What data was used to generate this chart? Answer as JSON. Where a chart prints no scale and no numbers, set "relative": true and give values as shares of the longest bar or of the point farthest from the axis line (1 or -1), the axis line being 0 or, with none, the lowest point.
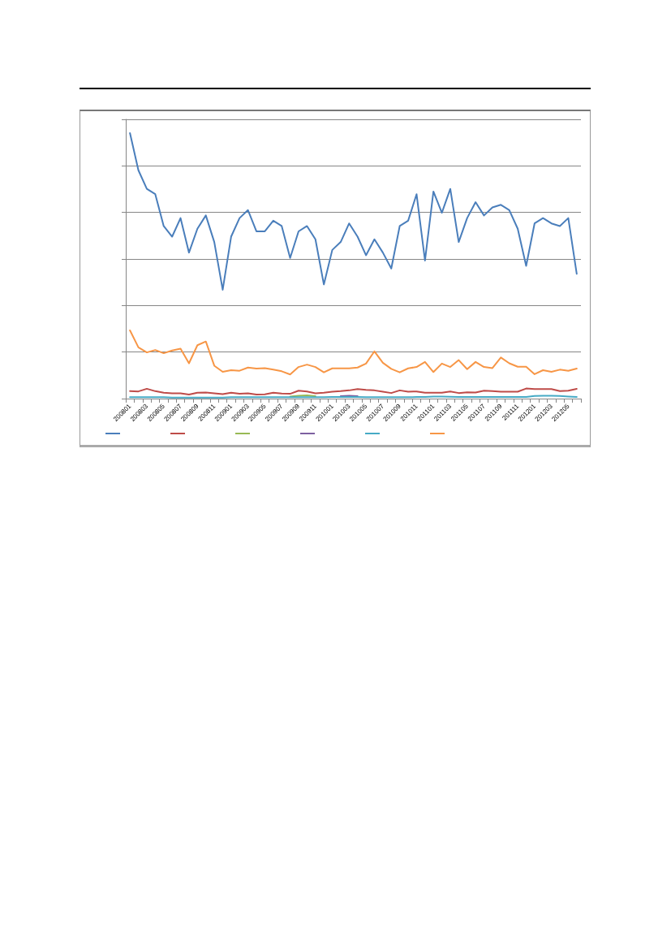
{
  "chart_data": {
    "type": "line",
    "relative": true,
    "grid": "y",
    "marker": "none",
    "line_style": "solid",
    "categories": [
      "200801",
      null,
      "200803",
      null,
      "200805",
      null,
      "200807",
      null,
      "200809",
      null,
      "200811",
      null,
      "200901",
      null,
      "200903",
      null,
      "200905",
      null,
      "200907",
      null,
      "200909",
      null,
      "200911",
      null,
      "201001",
      null,
      "201003",
      null,
      "201005",
      null,
      "201007",
      null,
      "201009",
      null,
      "201011",
      null,
      "201101",
      null,
      "201103",
      null,
      "201105",
      null,
      "201107",
      null,
      "201109",
      null,
      "201111",
      null,
      "201201",
      null,
      "201203",
      null,
      "201205",
      null
    ],
    "series": [
      {
        "color": "#4a7ebb",
        "values": [
          1.0,
          0.86,
          0.79,
          0.77,
          0.65,
          0.61,
          0.68,
          0.55,
          0.64,
          0.69,
          0.59,
          0.41,
          0.61,
          0.68,
          0.71,
          0.63,
          0.63,
          0.67,
          0.65,
          0.53,
          0.63,
          0.65,
          0.6,
          0.43,
          0.56,
          0.59,
          0.66,
          0.61,
          0.54,
          0.6,
          0.55,
          0.49,
          0.65,
          0.67,
          0.77,
          0.52,
          0.78,
          0.7,
          0.79,
          0.59,
          0.68,
          0.74,
          0.69,
          0.72,
          0.73,
          0.71,
          0.64,
          0.5,
          0.66,
          0.68,
          0.66,
          0.65,
          0.68,
          0.47
        ]
      },
      {
        "color": "#be4b48",
        "values": [
          0.028,
          0.027,
          0.037,
          0.028,
          0.022,
          0.02,
          0.02,
          0.015,
          0.022,
          0.023,
          0.02,
          0.017,
          0.022,
          0.018,
          0.02,
          0.015,
          0.016,
          0.022,
          0.019,
          0.018,
          0.03,
          0.027,
          0.02,
          0.022,
          0.026,
          0.028,
          0.031,
          0.036,
          0.033,
          0.031,
          0.026,
          0.021,
          0.031,
          0.026,
          0.027,
          0.022,
          0.022,
          0.022,
          0.027,
          0.021,
          0.024,
          0.023,
          0.03,
          0.028,
          0.026,
          0.026,
          0.026,
          0.038,
          0.036,
          0.036,
          0.036,
          0.028,
          0.03,
          0.037
        ]
      },
      {
        "color": "#98b954",
        "values": [
          null,
          null,
          null,
          null,
          null,
          null,
          null,
          null,
          null,
          null,
          null,
          null,
          null,
          null,
          null,
          null,
          null,
          null,
          null,
          0.008,
          0.011,
          0.012,
          0.009,
          null,
          null,
          null,
          null,
          null,
          null,
          null,
          null,
          null,
          null,
          null,
          null,
          null,
          null,
          null,
          null,
          null,
          null,
          null,
          null,
          null,
          null,
          null,
          null,
          null,
          null,
          null,
          null,
          null,
          null,
          null
        ]
      },
      {
        "color": "#7d60a0",
        "values": [
          null,
          null,
          null,
          null,
          null,
          null,
          null,
          null,
          null,
          null,
          null,
          null,
          null,
          null,
          null,
          null,
          null,
          null,
          null,
          null,
          null,
          null,
          null,
          null,
          null,
          0.009,
          0.011,
          0.009,
          null,
          null,
          null,
          null,
          null,
          null,
          null,
          null,
          null,
          null,
          null,
          null,
          null,
          null,
          null,
          null,
          null,
          null,
          null,
          null,
          null,
          null,
          null,
          null,
          null,
          null
        ]
      },
      {
        "color": "#46aac5",
        "values": [
          0.005,
          0.005,
          0.005,
          0.005,
          0.005,
          0.004,
          0.004,
          0.004,
          0.004,
          0.004,
          0.004,
          0.004,
          0.005,
          0.005,
          0.005,
          0.005,
          0.005,
          0.005,
          0.005,
          0.005,
          0.005,
          0.005,
          0.005,
          0.005,
          0.006,
          0.006,
          0.006,
          0.006,
          0.005,
          0.005,
          0.005,
          0.005,
          0.005,
          0.005,
          0.006,
          0.006,
          0.008,
          0.008,
          0.007,
          0.006,
          0.006,
          0.006,
          0.006,
          0.006,
          0.006,
          0.006,
          0.006,
          0.006,
          0.01,
          0.011,
          0.011,
          0.01,
          0.008,
          0.006
        ]
      },
      {
        "color": "#f79646",
        "values": [
          0.257,
          0.193,
          0.174,
          0.183,
          0.171,
          0.181,
          0.188,
          0.133,
          0.201,
          0.215,
          0.124,
          0.101,
          0.107,
          0.105,
          0.117,
          0.113,
          0.115,
          0.109,
          0.103,
          0.091,
          0.119,
          0.128,
          0.119,
          0.099,
          0.114,
          0.114,
          0.114,
          0.117,
          0.132,
          0.178,
          0.135,
          0.112,
          0.099,
          0.114,
          0.119,
          0.138,
          0.1,
          0.132,
          0.119,
          0.145,
          0.111,
          0.138,
          0.119,
          0.115,
          0.155,
          0.133,
          0.12,
          0.12,
          0.092,
          0.107,
          0.101,
          0.109,
          0.105,
          0.113
        ]
      }
    ]
  }
}
